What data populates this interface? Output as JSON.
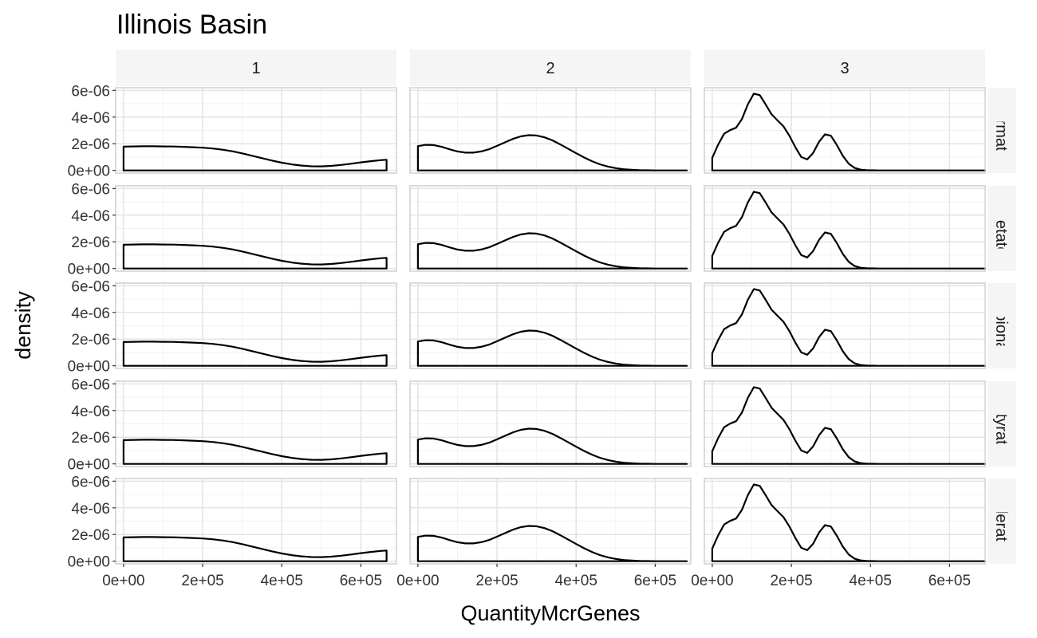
{
  "chart_data": {
    "type": "area",
    "title": "Illinois Basin",
    "xlabel": "QuantityMcrGenes",
    "ylabel": "density",
    "xlim": [
      -20000,
      690000
    ],
    "ylim": [
      -2e-07,
      6.2e-06
    ],
    "x_ticks": [
      0,
      200000,
      400000,
      600000
    ],
    "x_tick_labels": [
      "0e+00",
      "2e+05",
      "4e+05",
      "6e+05"
    ],
    "y_ticks": [
      0,
      2e-06,
      4e-06,
      6e-06
    ],
    "y_tick_labels": [
      "0e+00",
      "2e-06",
      "4e-06",
      "6e-06"
    ],
    "grid": true,
    "facet_columns": [
      "1",
      "2",
      "3"
    ],
    "facet_rows": [
      "Formate",
      "Acetate",
      "Propionate",
      "Butyrate",
      "Valerate"
    ],
    "series": [
      {
        "column": "1",
        "x": [
          0,
          25000,
          50000,
          75000,
          100000,
          125000,
          150000,
          175000,
          200000,
          225000,
          250000,
          275000,
          300000,
          325000,
          350000,
          375000,
          400000,
          425000,
          450000,
          475000,
          500000,
          525000,
          550000,
          575000,
          600000,
          625000,
          650000,
          665000
        ],
        "y": [
          1.78e-06,
          1.8e-06,
          1.81e-06,
          1.81e-06,
          1.8e-06,
          1.79e-06,
          1.77e-06,
          1.74e-06,
          1.7e-06,
          1.64e-06,
          1.55e-06,
          1.43e-06,
          1.28e-06,
          1.1e-06,
          9.2e-07,
          7.4e-07,
          5.8e-07,
          4.5e-07,
          3.6e-07,
          3.1e-07,
          3e-07,
          3.4e-07,
          4.1e-07,
          5e-07,
          6e-07,
          6.9e-07,
          7.7e-07,
          8e-07
        ]
      },
      {
        "column": "2",
        "x": [
          0,
          20000,
          40000,
          60000,
          80000,
          100000,
          120000,
          140000,
          160000,
          180000,
          200000,
          220000,
          240000,
          260000,
          280000,
          300000,
          320000,
          340000,
          360000,
          380000,
          400000,
          420000,
          440000,
          460000,
          480000,
          500000,
          520000,
          540000,
          560000,
          580000,
          600000,
          620000,
          640000,
          660000,
          680000
        ],
        "y": [
          1.82e-06,
          1.92e-06,
          1.9e-06,
          1.77e-06,
          1.58e-06,
          1.42e-06,
          1.33e-06,
          1.33e-06,
          1.42e-06,
          1.59e-06,
          1.84e-06,
          2.1e-06,
          2.36e-06,
          2.55e-06,
          2.64e-06,
          2.62e-06,
          2.48e-06,
          2.25e-06,
          1.95e-06,
          1.62e-06,
          1.29e-06,
          9.7e-07,
          6.9e-07,
          4.6e-07,
          2.9e-07,
          1.7e-07,
          9e-08,
          5e-08,
          2e-08,
          1e-08,
          0.0,
          0.0,
          0.0,
          0.0,
          0.0
        ]
      },
      {
        "column": "3",
        "x": [
          0,
          15000,
          30000,
          45000,
          60000,
          75000,
          90000,
          105000,
          120000,
          135000,
          150000,
          165000,
          180000,
          195000,
          210000,
          225000,
          240000,
          255000,
          270000,
          285000,
          300000,
          315000,
          330000,
          345000,
          360000,
          375000,
          390000,
          405000,
          420000,
          450000,
          500000,
          550000,
          600000,
          650000,
          690000
        ],
        "y": [
          9.5e-07,
          1.95e-06,
          2.75e-06,
          3.02e-06,
          3.2e-06,
          3.85e-06,
          4.95e-06,
          5.75e-06,
          5.65e-06,
          4.95e-06,
          4.2e-06,
          3.75e-06,
          3.3e-06,
          2.6e-06,
          1.75e-06,
          1e-06,
          8.2e-07,
          1.3e-06,
          2.15e-06,
          2.7e-06,
          2.6e-06,
          1.9e-06,
          1.1e-06,
          5e-07,
          1.8e-07,
          6e-08,
          2e-08,
          1e-08,
          0.0,
          0.0,
          0.0,
          0.0,
          0.0,
          0.0,
          0.0
        ]
      }
    ]
  }
}
